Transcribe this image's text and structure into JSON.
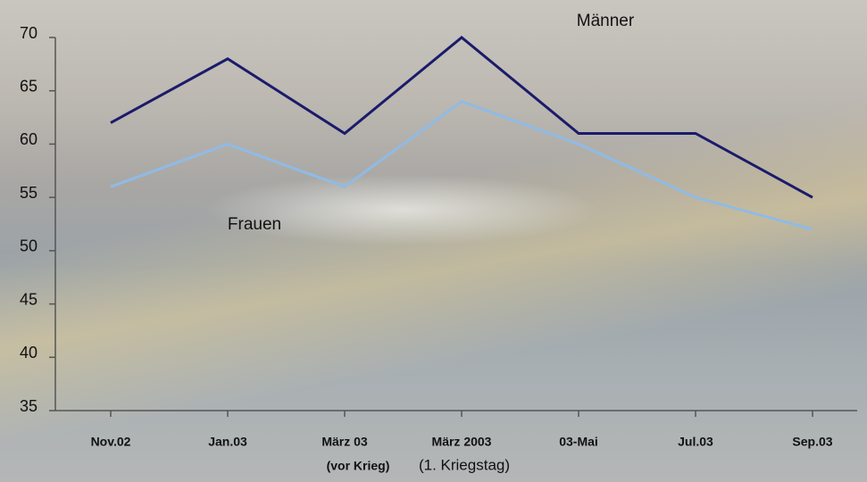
{
  "chart_data": {
    "type": "line",
    "categories": [
      "Nov.02",
      "Jan.03",
      "März 03",
      "März 2003",
      "03-Mai",
      "Jul.03",
      "Sep.03"
    ],
    "annotations": [
      "(vor Krieg)",
      "(1. Kriegstag)"
    ],
    "series": [
      {
        "name": "Männer",
        "color": "#1b1b6b",
        "values": [
          62,
          68,
          61,
          70,
          61,
          61,
          55
        ]
      },
      {
        "name": "Frauen",
        "color": "#8fbbe6",
        "values": [
          56,
          60,
          56,
          64,
          60,
          55,
          52
        ]
      }
    ],
    "ylim": [
      35,
      70
    ],
    "yticks": [
      35,
      40,
      45,
      50,
      55,
      60,
      65,
      70
    ]
  }
}
